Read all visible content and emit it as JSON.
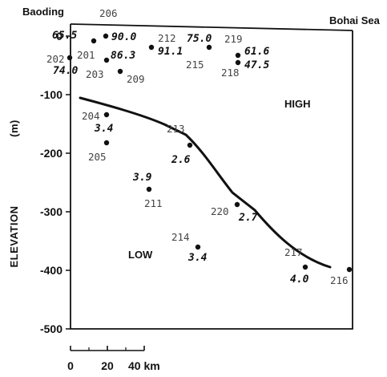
{
  "labels": {
    "left_place": "Baoding",
    "right_place": "Bohai Sea",
    "high": "HIGH",
    "low": "LOW",
    "y_title": "ELEVATION",
    "y_unit": "(m)"
  },
  "y_ticks": [
    "0",
    "-100",
    "-200",
    "-300",
    "-400",
    "-500"
  ],
  "scale_bar": {
    "ticks": [
      "0",
      "20",
      "40 km"
    ]
  },
  "wells": [
    {
      "id": "206",
      "value": "90.0"
    },
    {
      "id": "201",
      "value": "65.5"
    },
    {
      "id": "202",
      "value": "74.0"
    },
    {
      "id": "203",
      "value": "86.3"
    },
    {
      "id": "209",
      "value": ""
    },
    {
      "id": "212",
      "value": "91.1"
    },
    {
      "id": "215",
      "value": "75.0"
    },
    {
      "id": "219",
      "value": "61.6"
    },
    {
      "id": "218",
      "value": "47.5"
    },
    {
      "id": "204",
      "value": "3.4"
    },
    {
      "id": "205",
      "value": ""
    },
    {
      "id": "213",
      "value": "2.6"
    },
    {
      "id": "211",
      "value": "3.9"
    },
    {
      "id": "220",
      "value": "2.7"
    },
    {
      "id": "214",
      "value": "3.4"
    },
    {
      "id": "217",
      "value": "4.0"
    },
    {
      "id": "216",
      "value": ""
    }
  ]
}
